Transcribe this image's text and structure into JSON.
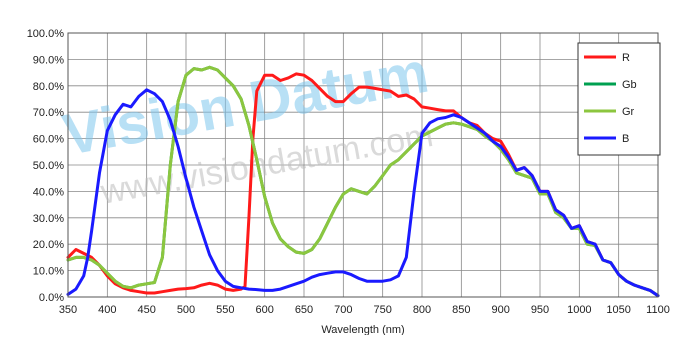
{
  "watermark": {
    "line1": "Vision Datum",
    "line2": "www.visiondatum.com"
  },
  "chart_data": {
    "type": "line",
    "xlabel": "Wavelength (nm)",
    "ylabel": "",
    "xlim": [
      350,
      1100
    ],
    "ylim": [
      0,
      100
    ],
    "x_ticks": [
      350,
      400,
      450,
      500,
      550,
      600,
      650,
      700,
      750,
      800,
      850,
      900,
      950,
      1000,
      1050,
      1100
    ],
    "y_ticks": [
      0,
      10,
      20,
      30,
      40,
      50,
      60,
      70,
      80,
      90,
      100
    ],
    "x_tick_labels": [
      "350",
      "400",
      "450",
      "500",
      "550",
      "600",
      "650",
      "700",
      "750",
      "800",
      "850",
      "900",
      "950",
      "1000",
      "1050",
      "1100"
    ],
    "y_tick_labels": [
      "0.0%",
      "10.0%",
      "20.0%",
      "30.0%",
      "40.0%",
      "50.0%",
      "60.0%",
      "70.0%",
      "80.0%",
      "90.0%",
      "100.0%"
    ],
    "grid": true,
    "legend_position": "top-right",
    "series": [
      {
        "name": "R",
        "color": "#ff1a1a",
        "x": [
          350,
          360,
          370,
          380,
          390,
          400,
          410,
          420,
          430,
          440,
          450,
          460,
          470,
          480,
          490,
          500,
          510,
          520,
          530,
          540,
          550,
          560,
          570,
          575,
          580,
          585,
          590,
          600,
          610,
          620,
          630,
          640,
          650,
          660,
          670,
          680,
          690,
          700,
          710,
          720,
          730,
          740,
          750,
          760,
          770,
          780,
          790,
          800,
          810,
          820,
          830,
          840,
          850,
          860,
          870,
          880,
          890,
          900,
          910,
          920,
          930,
          940,
          950,
          960,
          970,
          980,
          990,
          1000,
          1010,
          1020,
          1030,
          1040,
          1050,
          1060,
          1070,
          1080,
          1090,
          1100
        ],
        "values": [
          15,
          18,
          16.5,
          15,
          12,
          8,
          5,
          3.5,
          2.5,
          2,
          1.5,
          1.5,
          2,
          2.5,
          3,
          3.2,
          3.5,
          4.5,
          5.2,
          4.5,
          3,
          2.5,
          3,
          4,
          30,
          60,
          78,
          84,
          84,
          82,
          83,
          84.5,
          84,
          82,
          79,
          76,
          74,
          74,
          77,
          79.5,
          79.5,
          79,
          78.5,
          78,
          76,
          76.5,
          75,
          72,
          71.5,
          71,
          70.5,
          70.5,
          68,
          66,
          65,
          62,
          60,
          59,
          54,
          48,
          49,
          46,
          40,
          40,
          33,
          31,
          26,
          27,
          21,
          20,
          14,
          13,
          8.5,
          6,
          4.5,
          3.5,
          2.5,
          0.5
        ]
      },
      {
        "name": "Gb",
        "color": "#00a050",
        "x": [
          350,
          360,
          370,
          380,
          390,
          400,
          410,
          420,
          430,
          440,
          450,
          460,
          470,
          480,
          490,
          500,
          510,
          520,
          530,
          540,
          550,
          560,
          570,
          580,
          590,
          600,
          610,
          620,
          630,
          640,
          650,
          660,
          670,
          680,
          690,
          700,
          710,
          720,
          730,
          740,
          750,
          760,
          770,
          780,
          790,
          800,
          810,
          820,
          830,
          840,
          850,
          860,
          870,
          880,
          890,
          900,
          910,
          920,
          930,
          940,
          950,
          960,
          970,
          980,
          990,
          1000,
          1010,
          1020,
          1030,
          1040,
          1050,
          1060,
          1070,
          1080,
          1090,
          1100
        ],
        "values": [
          14,
          15,
          15,
          14,
          12,
          9,
          6,
          4,
          3.5,
          4.5,
          5,
          5.5,
          15,
          50,
          74,
          84,
          86.5,
          86,
          87,
          86,
          83,
          80,
          75,
          65,
          52,
          38,
          28,
          22,
          19,
          17,
          16.5,
          18,
          22,
          28,
          34,
          39,
          41,
          40,
          39,
          42,
          46,
          50,
          52,
          55,
          58,
          61,
          62.5,
          64,
          65.5,
          66,
          65.5,
          64.5,
          63.5,
          61,
          59,
          56,
          52,
          47,
          46,
          45,
          39,
          39,
          32,
          30,
          26,
          26,
          20,
          19.5,
          14,
          13,
          8.5,
          6,
          4.5,
          3.5,
          2.5,
          0.5
        ]
      },
      {
        "name": "Gr",
        "color": "#8cc63f",
        "x": [
          350,
          360,
          370,
          380,
          390,
          400,
          410,
          420,
          430,
          440,
          450,
          460,
          470,
          480,
          490,
          500,
          510,
          520,
          530,
          540,
          550,
          560,
          570,
          580,
          590,
          600,
          610,
          620,
          630,
          640,
          650,
          660,
          670,
          680,
          690,
          700,
          710,
          720,
          730,
          740,
          750,
          760,
          770,
          780,
          790,
          800,
          810,
          820,
          830,
          840,
          850,
          860,
          870,
          880,
          890,
          900,
          910,
          920,
          930,
          940,
          950,
          960,
          970,
          980,
          990,
          1000,
          1010,
          1020,
          1030,
          1040,
          1050,
          1060,
          1070,
          1080,
          1090,
          1100
        ],
        "values": [
          14,
          15,
          15,
          14,
          12,
          9,
          6,
          4,
          3.5,
          4.5,
          5,
          5.5,
          15,
          50,
          74,
          84,
          86.5,
          86,
          87,
          86,
          83,
          80,
          75,
          65,
          52,
          38,
          28,
          22,
          19,
          17,
          16.5,
          18,
          22,
          28,
          34,
          39,
          41,
          40,
          39,
          42,
          46,
          50,
          52,
          55,
          58,
          61,
          62.5,
          64,
          65.5,
          66,
          65.5,
          64.5,
          63.5,
          61,
          59,
          56,
          52,
          47,
          46,
          45,
          39,
          39,
          32,
          30,
          26,
          26,
          20,
          19.5,
          14,
          13,
          8.5,
          6,
          4.5,
          3.5,
          2.5,
          0.5
        ]
      },
      {
        "name": "B",
        "color": "#1a1aff",
        "x": [
          350,
          360,
          370,
          375,
          380,
          390,
          400,
          410,
          420,
          430,
          440,
          450,
          460,
          470,
          480,
          490,
          500,
          510,
          520,
          530,
          540,
          550,
          560,
          570,
          580,
          590,
          600,
          610,
          620,
          630,
          640,
          650,
          660,
          670,
          680,
          690,
          700,
          710,
          720,
          730,
          740,
          750,
          760,
          770,
          780,
          790,
          800,
          810,
          820,
          830,
          840,
          850,
          860,
          870,
          880,
          890,
          900,
          910,
          920,
          930,
          940,
          950,
          960,
          970,
          980,
          990,
          1000,
          1010,
          1020,
          1030,
          1040,
          1050,
          1060,
          1070,
          1080,
          1090,
          1100
        ],
        "values": [
          1,
          3,
          8,
          15,
          25,
          47,
          63,
          69,
          73,
          72,
          76,
          78.5,
          77,
          74,
          67,
          57,
          45,
          34,
          25,
          16,
          10,
          6,
          4,
          3.5,
          3,
          2.8,
          2.5,
          2.5,
          3,
          4,
          5,
          6,
          7.5,
          8.5,
          9,
          9.5,
          9.5,
          8.5,
          7,
          6,
          6,
          6,
          6.5,
          8,
          15,
          40,
          62,
          66,
          67.5,
          68,
          69,
          68,
          66,
          64,
          62,
          59,
          57,
          53,
          48,
          49,
          46,
          40,
          40,
          33,
          31,
          26,
          27,
          21,
          20,
          14,
          13,
          8.5,
          6,
          4.5,
          3.5,
          2.5,
          0.5
        ]
      }
    ]
  }
}
